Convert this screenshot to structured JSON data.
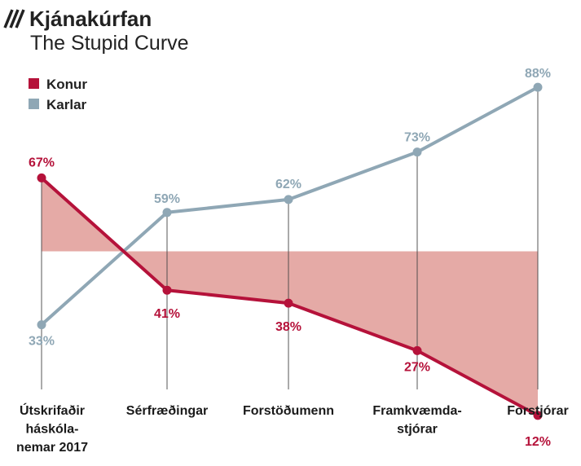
{
  "title": "Kjánakúrfan",
  "subtitle": "The Stupid Curve",
  "colors": {
    "konur": "#b5123a",
    "karlar": "#8fa7b5",
    "fill": "#e5aaa6",
    "axis": "#444444",
    "text": "#222222"
  },
  "chart_data": {
    "type": "line",
    "categories": [
      [
        "Útskrifaðir",
        "háskóla-",
        "nemar 2017"
      ],
      [
        "Sérfræðingar"
      ],
      [
        "Forstöðumenn"
      ],
      [
        "Framkvæmda-",
        "stjórar"
      ],
      [
        "Forstjórar"
      ]
    ],
    "series": [
      {
        "name": "Konur",
        "values": [
          67,
          41,
          38,
          27,
          12
        ],
        "labels": [
          "67%",
          "41%",
          "38%",
          "27%",
          "12%"
        ],
        "color": "#b5123a"
      },
      {
        "name": "Karlar",
        "values": [
          33,
          59,
          62,
          73,
          88
        ],
        "labels": [
          "33%",
          "59%",
          "62%",
          "73%",
          "88%"
        ],
        "color": "#8fa7b5"
      }
    ],
    "reference_value": 50,
    "ylim": [
      0,
      100
    ],
    "legend": "top-left",
    "grid": false
  }
}
